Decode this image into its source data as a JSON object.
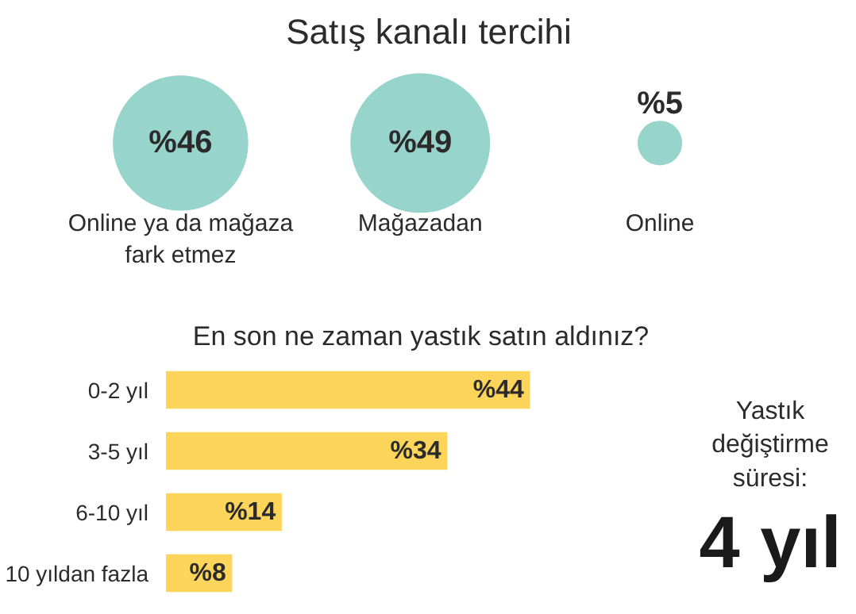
{
  "chart_data": [
    {
      "type": "other",
      "title": "Satış kanalı tercihi",
      "categories": [
        "Online ya da mağaza fark etmez",
        "Mağazadan",
        "Online"
      ],
      "values": [
        46,
        49,
        5
      ],
      "value_labels": [
        "%46",
        "%49",
        "%5"
      ],
      "color": "#97d4cc"
    },
    {
      "type": "bar",
      "orientation": "horizontal",
      "title": "En son ne zaman yastık satın aldınız?",
      "categories": [
        "0-2 yıl",
        "3-5 yıl",
        "6-10 yıl",
        "10 yıldan fazla"
      ],
      "values": [
        44,
        34,
        14,
        8
      ],
      "value_labels": [
        "%44",
        "%34",
        "%14",
        "%8"
      ],
      "color": "#fdd55a",
      "tick_labels": "y",
      "grid": false
    },
    {
      "type": "other",
      "title": "Yastık değiştirme süresi:",
      "annotations": [
        "4 yıl"
      ]
    }
  ]
}
